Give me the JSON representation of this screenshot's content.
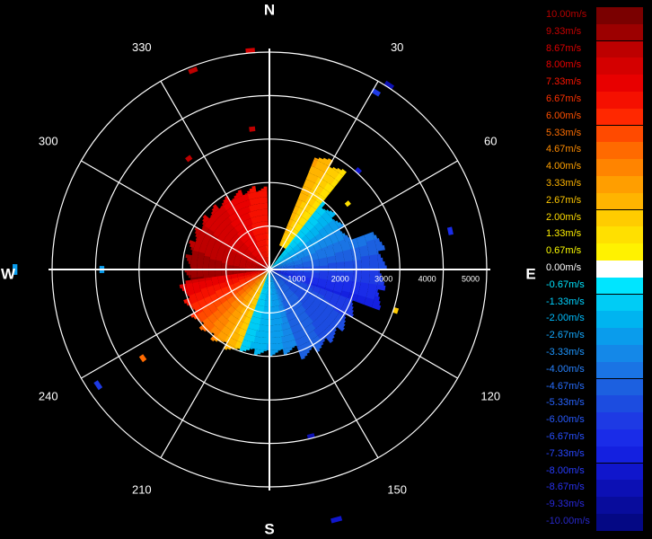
{
  "chart_data": {
    "type": "polar-heatmap",
    "title": "",
    "compass": {
      "N": "N",
      "E": "E",
      "S": "S",
      "W": "W"
    },
    "angle_labels": [
      "30",
      "60",
      "120",
      "150",
      "210",
      "240",
      "300",
      "330"
    ],
    "range_labels": [
      "1000",
      "2000",
      "3000",
      "4000",
      "5000"
    ],
    "rmax": 5000,
    "legend": {
      "labels": [
        "10.00m/s",
        "9.33m/s",
        "8.67m/s",
        "8.00m/s",
        "7.33m/s",
        "6.67m/s",
        "6.00m/s",
        "5.33m/s",
        "4.67m/s",
        "4.00m/s",
        "3.33m/s",
        "2.67m/s",
        "2.00m/s",
        "1.33m/s",
        "0.67m/s",
        "0.00m/s",
        "-0.67m/s",
        "-1.33m/s",
        "-2.00m/s",
        "-2.67m/s",
        "-3.33m/s",
        "-4.00m/s",
        "-4.67m/s",
        "-5.33m/s",
        "-6.00m/s",
        "-6.67m/s",
        "-7.33m/s",
        "-8.00m/s",
        "-8.67m/s",
        "-9.33m/s",
        "-10.00m/s"
      ],
      "colors": [
        "#7a0000",
        "#9c0000",
        "#bd0000",
        "#d40000",
        "#e80000",
        "#f51000",
        "#ff2800",
        "#ff4a00",
        "#ff6a00",
        "#ff8400",
        "#ff9e00",
        "#ffb400",
        "#ffcc00",
        "#ffe000",
        "#fff200",
        "#ffffff",
        "#00e5ff",
        "#00ccf5",
        "#00b4f0",
        "#0a9cec",
        "#1488e8",
        "#1a74e4",
        "#1c60e0",
        "#1c4ce0",
        "#1e3ae4",
        "#1a2ce8",
        "#1420e0",
        "#1016cc",
        "#0c10b4",
        "#080c9c",
        "#040884"
      ],
      "label_colors": [
        "#b40000",
        "#c80000",
        "#dc0000",
        "#e80000",
        "#ff1400",
        "#ff3200",
        "#ff5000",
        "#ff6e00",
        "#ff8c00",
        "#ffa000",
        "#ffb400",
        "#ffc800",
        "#ffdc00",
        "#fff000",
        "#ffff00",
        "#ffffff",
        "#00e5ff",
        "#00d2ff",
        "#00beff",
        "#14aaff",
        "#1e96ff",
        "#2882ff",
        "#286eff",
        "#2864ff",
        "#285aff",
        "#2850ff",
        "#2846ff",
        "#283cff",
        "#2832f0",
        "#2828dc",
        "#2828c8"
      ]
    },
    "sectors": [
      {
        "az0": 262,
        "az1": 358,
        "v0": 9.2,
        "v1": 6.0,
        "r0": 0,
        "r1": 1950
      },
      {
        "az0": 200,
        "az1": 262,
        "v0": 1.5,
        "v1": 7.5,
        "r0": 0,
        "r1": 2100
      },
      {
        "az0": 358,
        "az1": 22,
        "v0": 6.0,
        "v1": 2.0,
        "r0": 0,
        "r1": 1900
      },
      {
        "az0": 22,
        "az1": 38,
        "v0": 2.5,
        "v1": 0.8,
        "r0": 600,
        "r1": 2900
      },
      {
        "az0": 38,
        "az1": 70,
        "v0": -0.7,
        "v1": -3.5,
        "r0": 0,
        "r1": 2000
      },
      {
        "az0": 70,
        "az1": 110,
        "v0": -3.5,
        "v1": -7.0,
        "r0": 0,
        "r1": 2700
      },
      {
        "az0": 110,
        "az1": 160,
        "v0": -5.5,
        "v1": -4.0,
        "r0": 0,
        "r1": 2200
      },
      {
        "az0": 160,
        "az1": 200,
        "v0": -3.0,
        "v1": -0.7,
        "r0": 0,
        "r1": 2000
      }
    ],
    "echoes": [
      {
        "az": 355,
        "r": 5000,
        "v": 8.0
      },
      {
        "az": 339,
        "r": 4850,
        "v": 8.6
      },
      {
        "az": 33,
        "r": 5000,
        "v": -8.7
      },
      {
        "az": 31,
        "r": 4700,
        "v": -6.0
      },
      {
        "az": 353,
        "r": 3200,
        "v": 8.6
      },
      {
        "az": 324,
        "r": 3100,
        "v": 8.6
      },
      {
        "az": 42,
        "r": 3000,
        "v": -8.0
      },
      {
        "az": 78,
        "r": 4200,
        "v": -6.7
      },
      {
        "az": 270,
        "r": 3800,
        "v": -2.7
      },
      {
        "az": 270,
        "r": 5800,
        "v": -2.7
      },
      {
        "az": 236,
        "r": 4700,
        "v": -6.0
      },
      {
        "az": 235,
        "r": 3500,
        "v": 4.7
      },
      {
        "az": 108,
        "r": 3000,
        "v": 2.0
      },
      {
        "az": 166,
        "r": 3900,
        "v": -8.7
      },
      {
        "az": 165,
        "r": 5900,
        "v": -8.0
      },
      {
        "az": 50,
        "r": 2300,
        "v": 1.3
      }
    ]
  }
}
